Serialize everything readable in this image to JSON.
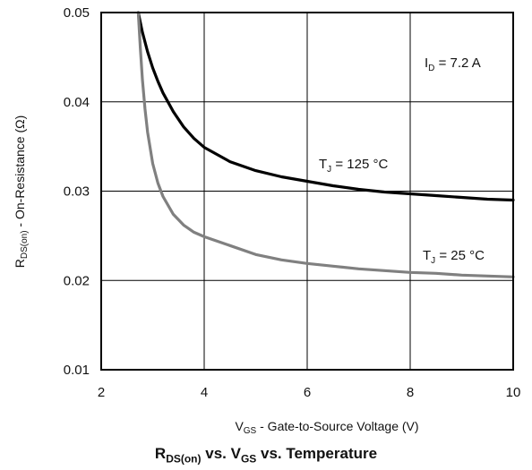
{
  "chart_data": {
    "type": "line",
    "title": "",
    "caption": {
      "r_main": "R",
      "r_sub": "DS(on)",
      "mid": " vs. V",
      "v_sub": "GS",
      "tail": " vs. Temperature"
    },
    "xlabel": {
      "main": "V",
      "sub": "GS",
      "rest": " - Gate-to-Source Voltage (V)"
    },
    "ylabel": {
      "main": "R",
      "sub": "DS(on)",
      "rest": " - On-Resistance (Ω)"
    },
    "xlim": [
      2,
      10
    ],
    "ylim": [
      0.01,
      0.05
    ],
    "xticks": [
      "2",
      "4",
      "6",
      "8",
      "10"
    ],
    "yticks": [
      "0.01",
      "0.02",
      "0.03",
      "0.04",
      "0.05"
    ],
    "grid": true,
    "annotation": {
      "main": "I",
      "sub": "D",
      "rest": " = 7.2 A"
    },
    "series": [
      {
        "label": {
          "main": "T",
          "sub": "J",
          "rest": " = 125 °C"
        },
        "color": "#000000",
        "x": [
          2.72,
          2.8,
          2.9,
          3.0,
          3.1,
          3.2,
          3.4,
          3.6,
          3.8,
          4.0,
          4.5,
          5.0,
          5.5,
          6.0,
          6.5,
          7.0,
          7.5,
          8.0,
          8.5,
          9.0,
          9.5,
          10.0
        ],
        "y": [
          0.05,
          0.0478,
          0.0456,
          0.0438,
          0.0423,
          0.041,
          0.0389,
          0.0372,
          0.0359,
          0.0349,
          0.0333,
          0.0323,
          0.0316,
          0.0311,
          0.0306,
          0.0302,
          0.0299,
          0.0297,
          0.0295,
          0.0293,
          0.0291,
          0.029
        ]
      },
      {
        "label": {
          "main": "T",
          "sub": "J",
          "rest": " = 25 °C"
        },
        "color": "#808080",
        "x": [
          2.72,
          2.76,
          2.8,
          2.85,
          2.9,
          3.0,
          3.1,
          3.2,
          3.4,
          3.6,
          3.8,
          4.0,
          4.5,
          5.0,
          5.5,
          6.0,
          6.5,
          7.0,
          7.5,
          8.0,
          8.5,
          9.0,
          9.5,
          10.0
        ],
        "y": [
          0.05,
          0.046,
          0.0425,
          0.0392,
          0.0366,
          0.0331,
          0.0309,
          0.0294,
          0.0274,
          0.0262,
          0.0254,
          0.0249,
          0.0239,
          0.0229,
          0.0223,
          0.0219,
          0.0216,
          0.0213,
          0.0211,
          0.0209,
          0.0208,
          0.0206,
          0.0205,
          0.0204
        ]
      }
    ]
  }
}
